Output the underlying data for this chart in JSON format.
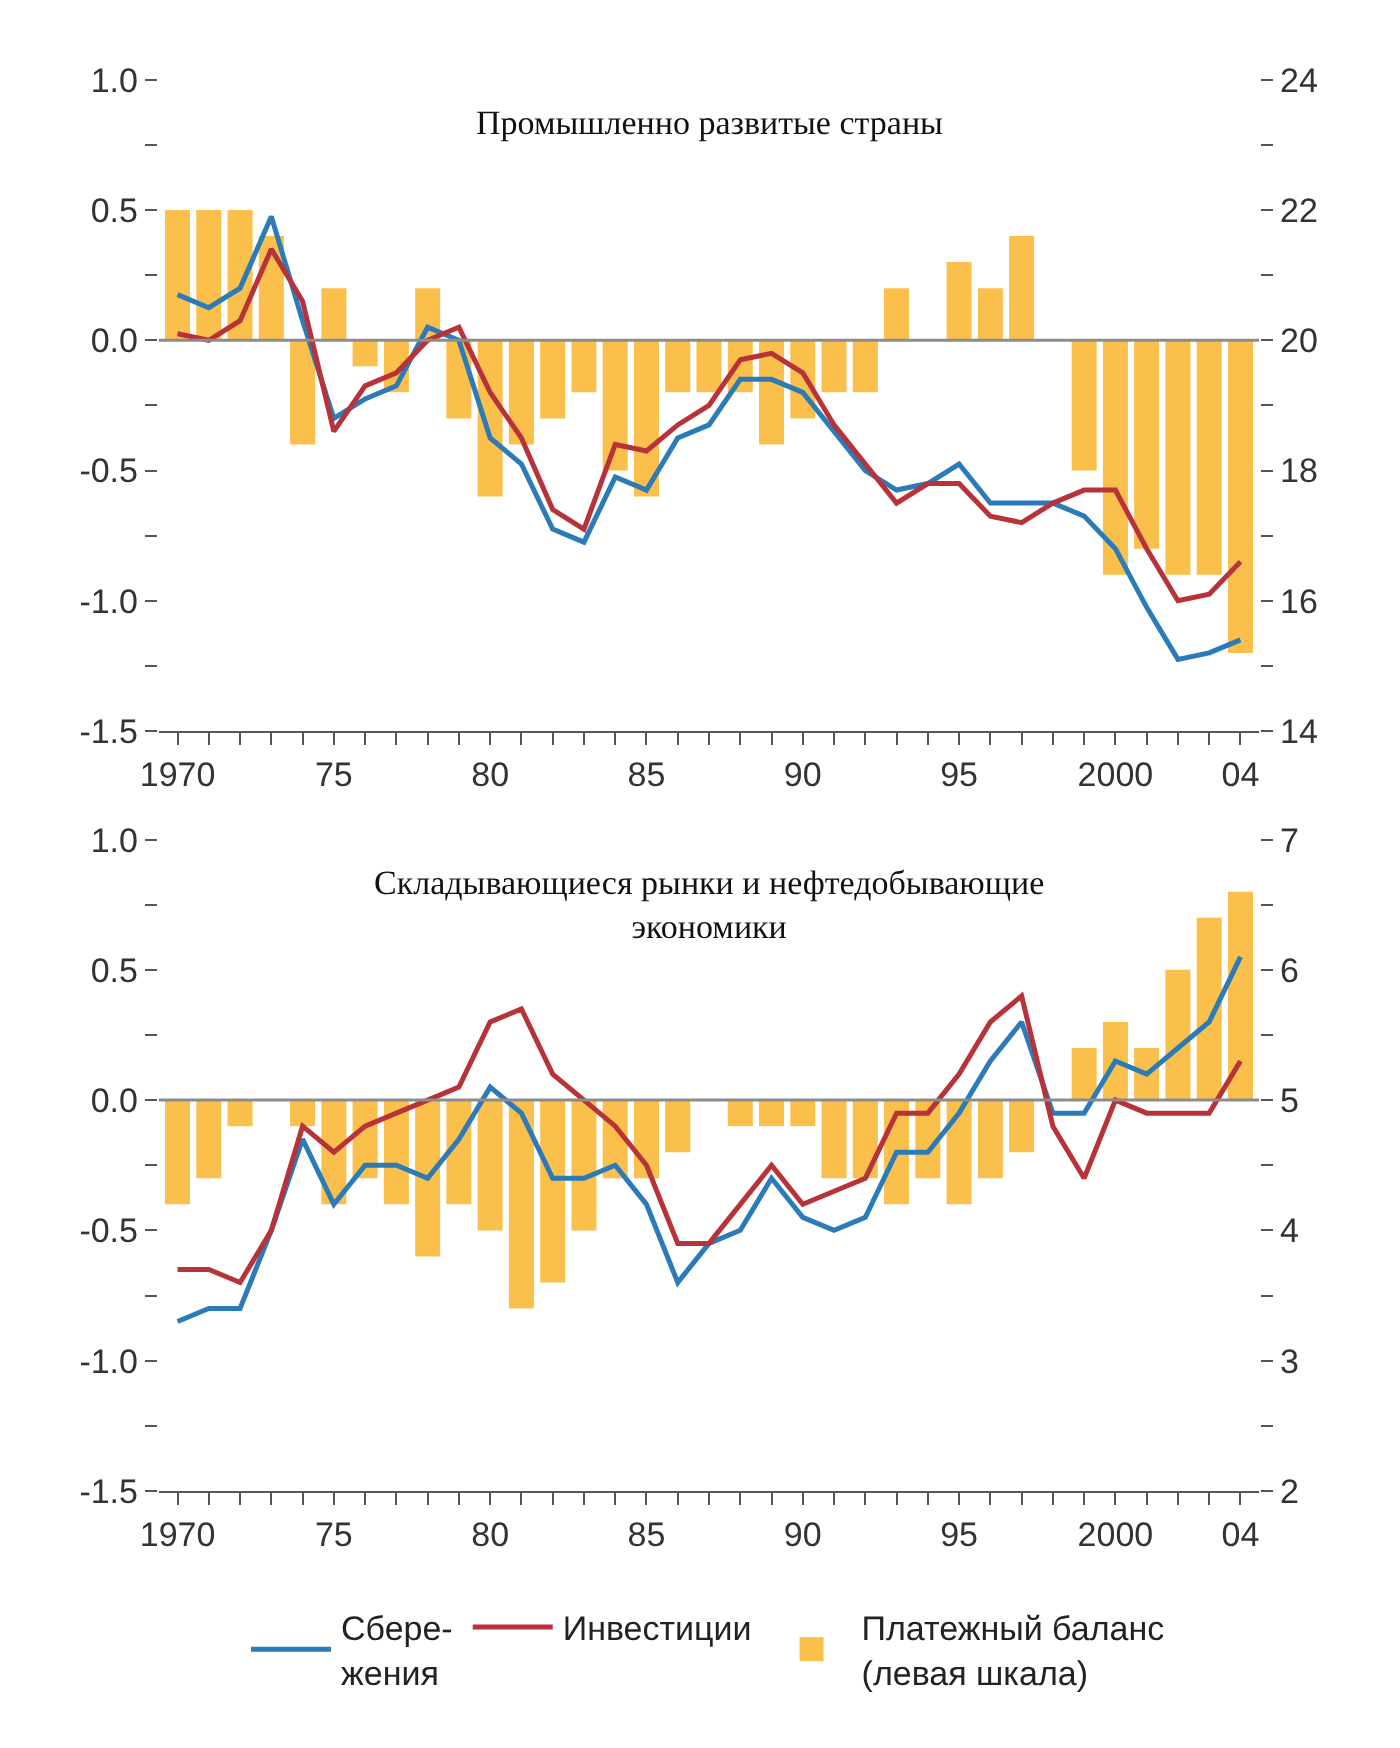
{
  "chart_data": [
    {
      "type": "bar",
      "title": "Промышленно развитые страны",
      "x": [
        1970,
        1971,
        1972,
        1973,
        1974,
        1975,
        1976,
        1977,
        1978,
        1979,
        1980,
        1981,
        1982,
        1983,
        1984,
        1985,
        1986,
        1987,
        1988,
        1989,
        1990,
        1991,
        1992,
        1993,
        1994,
        1995,
        1996,
        1997,
        1998,
        1999,
        2000,
        2001,
        2002,
        2003,
        2004
      ],
      "series": [
        {
          "name": "Платежный баланс\n(левая шкала)",
          "color": "#fbbf4c",
          "values": [
            0.5,
            0.5,
            0.5,
            0.4,
            -0.4,
            0.2,
            -0.1,
            -0.2,
            0.2,
            -0.3,
            -0.6,
            -0.4,
            -0.3,
            -0.2,
            -0.5,
            -0.6,
            -0.2,
            -0.2,
            -0.2,
            -0.4,
            -0.3,
            -0.2,
            -0.2,
            0.2,
            0,
            0.3,
            0.2,
            0.4,
            0,
            -0.5,
            -0.9,
            -0.8,
            -0.9,
            -0.9,
            -1.2
          ]
        },
        {
          "name": "Сбере-\nжения",
          "type": "line",
          "axis": "y2",
          "color": "#2a7bb8",
          "values": [
            20.7,
            20.5,
            20.8,
            21.9,
            20.3,
            18.8,
            19.1,
            19.3,
            20.2,
            20.0,
            18.5,
            18.1,
            17.1,
            16.9,
            17.9,
            17.7,
            18.5,
            18.7,
            19.4,
            19.4,
            19.2,
            18.6,
            18.0,
            17.7,
            17.8,
            18.1,
            17.5,
            17.5,
            17.5,
            17.3,
            16.8,
            15.9,
            15.1,
            15.2,
            15.4
          ]
        },
        {
          "name": "Инвестиции",
          "type": "line",
          "axis": "y2",
          "color": "#b8323a",
          "values": [
            20.1,
            20.0,
            20.3,
            21.4,
            20.6,
            18.6,
            19.3,
            19.5,
            20.0,
            20.2,
            19.2,
            18.5,
            17.4,
            17.1,
            18.4,
            18.3,
            18.7,
            19.0,
            19.7,
            19.8,
            19.5,
            18.7,
            18.1,
            17.5,
            17.8,
            17.8,
            17.3,
            17.2,
            17.5,
            17.7,
            17.7,
            16.8,
            16.0,
            16.1,
            16.6
          ]
        }
      ],
      "xlim": [
        1969.4,
        2004.6
      ],
      "xticks": [
        {
          "value": 1970,
          "label": "1970"
        },
        {
          "value": 1971,
          "label": null
        },
        {
          "value": 1972,
          "label": null
        },
        {
          "value": 1973,
          "label": null
        },
        {
          "value": 1974,
          "label": null
        },
        {
          "value": 1975,
          "label": "75"
        },
        {
          "value": 1976,
          "label": null
        },
        {
          "value": 1977,
          "label": null
        },
        {
          "value": 1978,
          "label": null
        },
        {
          "value": 1979,
          "label": null
        },
        {
          "value": 1980,
          "label": "80"
        },
        {
          "value": 1981,
          "label": null
        },
        {
          "value": 1982,
          "label": null
        },
        {
          "value": 1983,
          "label": null
        },
        {
          "value": 1984,
          "label": null
        },
        {
          "value": 1985,
          "label": "85"
        },
        {
          "value": 1986,
          "label": null
        },
        {
          "value": 1987,
          "label": null
        },
        {
          "value": 1988,
          "label": null
        },
        {
          "value": 1989,
          "label": null
        },
        {
          "value": 1990,
          "label": "90"
        },
        {
          "value": 1991,
          "label": null
        },
        {
          "value": 1992,
          "label": null
        },
        {
          "value": 1993,
          "label": null
        },
        {
          "value": 1994,
          "label": null
        },
        {
          "value": 1995,
          "label": "95"
        },
        {
          "value": 1996,
          "label": null
        },
        {
          "value": 1997,
          "label": null
        },
        {
          "value": 1998,
          "label": null
        },
        {
          "value": 1999,
          "label": null
        },
        {
          "value": 2000,
          "label": "2000"
        },
        {
          "value": 2001,
          "label": null
        },
        {
          "value": 2002,
          "label": null
        },
        {
          "value": 2003,
          "label": null
        },
        {
          "value": 2004,
          "label": "04"
        }
      ],
      "ylim": [
        -1.5,
        1.0
      ],
      "yticks": [
        {
          "value": -1.5,
          "label": "-1.5"
        },
        {
          "value": -1.25,
          "label": null
        },
        {
          "value": -1.0,
          "label": "-1.0"
        },
        {
          "value": -0.75,
          "label": null
        },
        {
          "value": -0.5,
          "label": "-0.5"
        },
        {
          "value": -0.25,
          "label": null
        },
        {
          "value": 0,
          "label": "0.0"
        },
        {
          "value": 0.25,
          "label": null
        },
        {
          "value": 0.5,
          "label": "0.5"
        },
        {
          "value": 0.75,
          "label": null
        },
        {
          "value": 1.0,
          "label": "1.0"
        }
      ],
      "y2lim": [
        14,
        24
      ],
      "y2ticks": [
        14,
        {
          "value": 15,
          "label": null
        },
        16,
        {
          "value": 17,
          "label": null
        },
        18,
        {
          "value": 19,
          "label": null
        },
        20,
        {
          "value": 21,
          "label": null
        },
        22,
        {
          "value": 23,
          "label": null
        },
        24
      ],
      "ref_lines": [
        {
          "axis": "y",
          "value": 0,
          "color": "#8c8c8c"
        }
      ],
      "legend": "bottom",
      "line_style": "solid"
    },
    {
      "type": "bar",
      "title": "Складывающиеся рынки и нефтедобывающие\nэкономики",
      "x": [
        1970,
        1971,
        1972,
        1973,
        1974,
        1975,
        1976,
        1977,
        1978,
        1979,
        1980,
        1981,
        1982,
        1983,
        1984,
        1985,
        1986,
        1987,
        1988,
        1989,
        1990,
        1991,
        1992,
        1993,
        1994,
        1995,
        1996,
        1997,
        1998,
        1999,
        2000,
        2001,
        2002,
        2003,
        2004
      ],
      "series": [
        {
          "color": "#fbbf4c",
          "values": [
            -0.4,
            -0.3,
            -0.1,
            0,
            -0.1,
            -0.4,
            -0.3,
            -0.4,
            -0.6,
            -0.4,
            -0.5,
            -0.8,
            -0.7,
            -0.5,
            -0.3,
            -0.3,
            -0.2,
            0,
            -0.1,
            -0.1,
            -0.1,
            -0.3,
            -0.3,
            -0.4,
            -0.3,
            -0.4,
            -0.3,
            -0.2,
            0,
            0.2,
            0.3,
            0.2,
            0.5,
            0.7,
            0.8
          ]
        },
        {
          "type": "line",
          "axis": "y2",
          "color": "#2a7bb8",
          "values": [
            3.3,
            3.4,
            3.4,
            4.0,
            4.7,
            4.2,
            4.5,
            4.5,
            4.4,
            4.7,
            5.1,
            4.9,
            4.4,
            4.4,
            4.5,
            4.2,
            3.6,
            3.9,
            4.0,
            4.4,
            4.1,
            4.0,
            4.1,
            4.6,
            4.6,
            4.9,
            5.3,
            5.6,
            4.9,
            4.9,
            5.3,
            5.2,
            5.4,
            5.6,
            6.1
          ]
        },
        {
          "type": "line",
          "axis": "y2",
          "color": "#b8323a",
          "values": [
            3.7,
            3.7,
            3.6,
            4.0,
            4.8,
            4.6,
            4.8,
            4.9,
            5.0,
            5.1,
            5.6,
            5.7,
            5.2,
            5.0,
            4.8,
            4.5,
            3.9,
            3.9,
            4.2,
            4.5,
            4.2,
            4.3,
            4.4,
            4.9,
            4.9,
            5.2,
            5.6,
            5.8,
            4.8,
            4.4,
            5.0,
            4.9,
            4.9,
            4.9,
            5.3
          ]
        }
      ],
      "xlim": [
        1969.4,
        2004.6
      ],
      "xticks": [
        {
          "value": 1970,
          "label": "1970"
        },
        {
          "value": 1971,
          "label": null
        },
        {
          "value": 1972,
          "label": null
        },
        {
          "value": 1973,
          "label": null
        },
        {
          "value": 1974,
          "label": null
        },
        {
          "value": 1975,
          "label": "75"
        },
        {
          "value": 1976,
          "label": null
        },
        {
          "value": 1977,
          "label": null
        },
        {
          "value": 1978,
          "label": null
        },
        {
          "value": 1979,
          "label": null
        },
        {
          "value": 1980,
          "label": "80"
        },
        {
          "value": 1981,
          "label": null
        },
        {
          "value": 1982,
          "label": null
        },
        {
          "value": 1983,
          "label": null
        },
        {
          "value": 1984,
          "label": null
        },
        {
          "value": 1985,
          "label": "85"
        },
        {
          "value": 1986,
          "label": null
        },
        {
          "value": 1987,
          "label": null
        },
        {
          "value": 1988,
          "label": null
        },
        {
          "value": 1989,
          "label": null
        },
        {
          "value": 1990,
          "label": "90"
        },
        {
          "value": 1991,
          "label": null
        },
        {
          "value": 1992,
          "label": null
        },
        {
          "value": 1993,
          "label": null
        },
        {
          "value": 1994,
          "label": null
        },
        {
          "value": 1995,
          "label": "95"
        },
        {
          "value": 1996,
          "label": null
        },
        {
          "value": 1997,
          "label": null
        },
        {
          "value": 1998,
          "label": null
        },
        {
          "value": 1999,
          "label": null
        },
        {
          "value": 2000,
          "label": "2000"
        },
        {
          "value": 2001,
          "label": null
        },
        {
          "value": 2002,
          "label": null
        },
        {
          "value": 2003,
          "label": null
        },
        {
          "value": 2004,
          "label": "04"
        }
      ],
      "ylim": [
        -1.5,
        1.0
      ],
      "yticks": [
        {
          "value": -1.5,
          "label": "-1.5"
        },
        {
          "value": -1.25,
          "label": null
        },
        {
          "value": -1.0,
          "label": "-1.0"
        },
        {
          "value": -0.75,
          "label": null
        },
        {
          "value": -0.5,
          "label": "-0.5"
        },
        {
          "value": -0.25,
          "label": null
        },
        {
          "value": 0,
          "label": "0.0"
        },
        {
          "value": 0.25,
          "label": null
        },
        {
          "value": 0.5,
          "label": "0.5"
        },
        {
          "value": 0.75,
          "label": null
        },
        {
          "value": 1.0,
          "label": "1.0"
        }
      ],
      "y2lim": [
        2,
        7
      ],
      "y2ticks": [
        2,
        {
          "value": 2.5,
          "label": null
        },
        3,
        {
          "value": 3.5,
          "label": null
        },
        4,
        {
          "value": 4.5,
          "label": null
        },
        5,
        {
          "value": 5.5,
          "label": null
        },
        6,
        {
          "value": 6.5,
          "label": null
        },
        7
      ],
      "ref_lines": [
        {
          "axis": "y",
          "value": 0,
          "color": "#8c8c8c"
        }
      ],
      "line_style": "solid"
    }
  ]
}
